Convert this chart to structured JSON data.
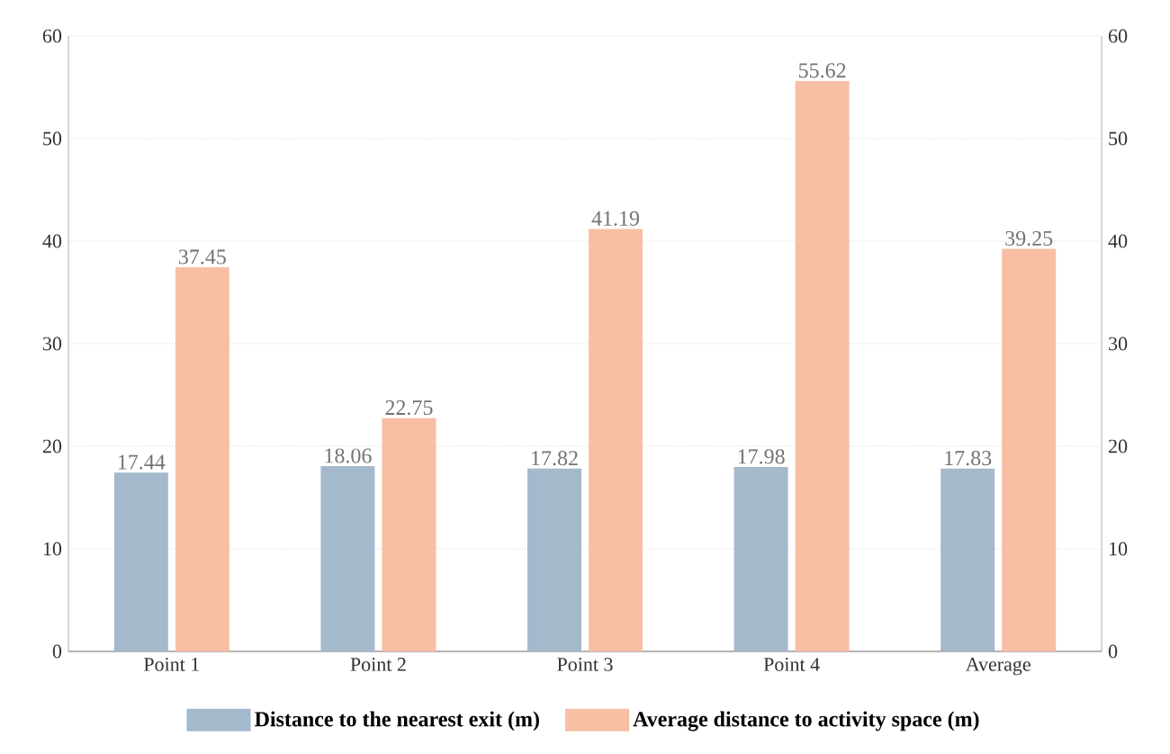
{
  "chart_data": {
    "type": "bar",
    "categories": [
      "Point 1",
      "Point 2",
      "Point 3",
      "Point 4",
      "Average"
    ],
    "series": [
      {
        "name": "Distance to the nearest exit (m)",
        "color": "#a5b9cc",
        "values": [
          17.44,
          18.06,
          17.82,
          17.98,
          17.83
        ]
      },
      {
        "name": "Average distance to activity space (m)",
        "color": "#f8bfa5",
        "values": [
          37.45,
          22.75,
          41.19,
          55.62,
          39.25
        ]
      }
    ],
    "ylim": [
      0,
      60
    ],
    "yticks": [
      0,
      10,
      20,
      30,
      40,
      50,
      60
    ],
    "y2lim": [
      0,
      60
    ],
    "y2ticks": [
      0,
      10,
      20,
      30,
      40,
      50,
      60
    ],
    "grid": "y",
    "legend": "bottom",
    "data_labels": true
  }
}
